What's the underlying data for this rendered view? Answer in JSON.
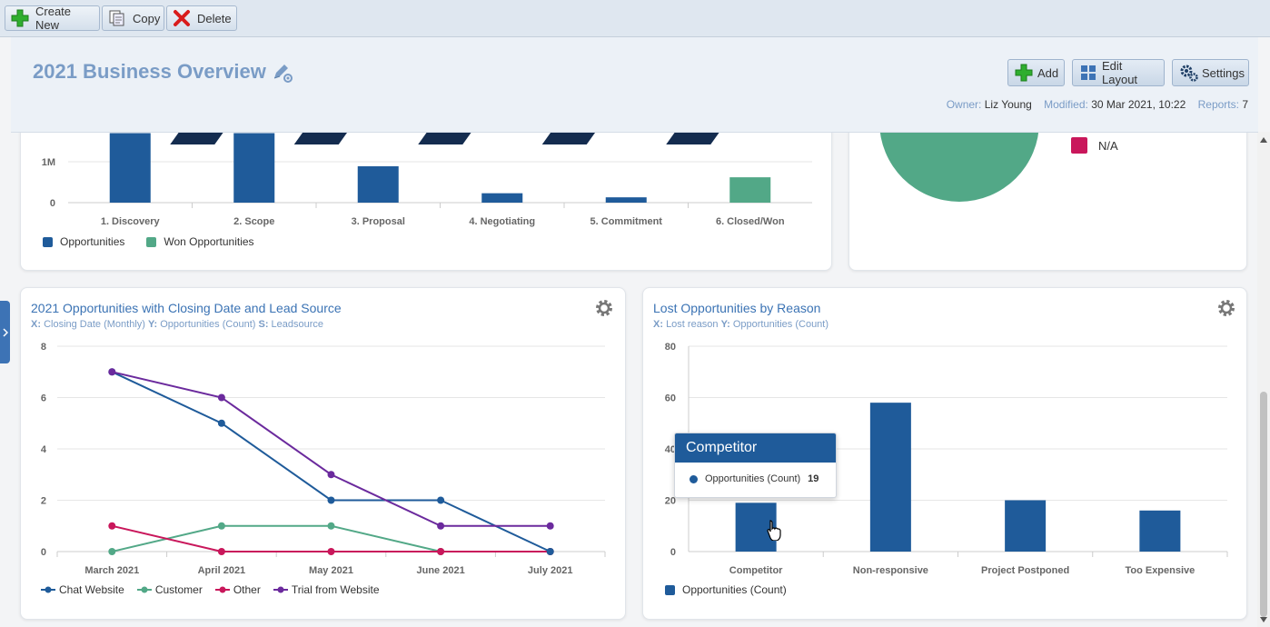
{
  "toolbar": {
    "create_new": "Create New",
    "copy": "Copy",
    "delete": "Delete"
  },
  "header": {
    "title": "2021 Business Overview",
    "add": "Add",
    "edit_layout": "Edit Layout",
    "settings": "Settings",
    "owner_label": "Owner:",
    "owner": "Liz Young",
    "modified_label": "Modified:",
    "modified": "30 Mar 2021, 10:22",
    "reports_label": "Reports:",
    "reports": "7"
  },
  "pipeline_card": {
    "y_ticks": [
      "1M",
      "0"
    ],
    "legend": [
      "Opportunities",
      "Won Opportunities"
    ]
  },
  "pie_card": {
    "legend": [
      "N/A"
    ]
  },
  "line_card": {
    "title": "2021 Opportunities with Closing Date and Lead Source",
    "sub_x_key": "X:",
    "sub_x": "Closing Date (Monthly)",
    "sub_y_key": "Y:",
    "sub_y": "Opportunities (Count)",
    "sub_s_key": "S:",
    "sub_s": "Leadsource"
  },
  "bar_card": {
    "title": "Lost Opportunities by Reason",
    "sub_x_key": "X:",
    "sub_x": "Lost reason",
    "sub_y_key": "Y:",
    "sub_y": "Opportunities (Count)"
  },
  "tooltip": {
    "title": "Competitor",
    "series": "Opportunities (Count)",
    "value": "19"
  },
  "colors": {
    "blue": "#1f5b9a",
    "green": "#52a887",
    "crimson": "#c9175b",
    "purple": "#6b2a9d",
    "navy": "#142c4f"
  },
  "chart_data": [
    {
      "type": "bar",
      "categories": [
        "1. Discovery",
        "2. Scope",
        "3. Proposal",
        "4. Negotiating",
        "5. Commitment",
        "6. Closed/Won"
      ],
      "series": [
        {
          "name": "Opportunities",
          "values": [
            1700000,
            1700000,
            890000,
            230000,
            130000,
            0
          ]
        },
        {
          "name": "Won Opportunities",
          "values": [
            0,
            0,
            0,
            0,
            0,
            620000
          ]
        }
      ],
      "yticks": [
        "0",
        "1M"
      ],
      "ylim": [
        0,
        1700000
      ],
      "legend": "bottom-left",
      "grid": true
    },
    {
      "type": "pie",
      "labels": [
        "N/A"
      ],
      "values": [
        1
      ],
      "legend": "right"
    },
    {
      "type": "line",
      "title": "2021 Opportunities with Closing Date and Lead Source",
      "categories": [
        "March 2021",
        "April 2021",
        "May 2021",
        "June 2021",
        "July 2021"
      ],
      "series": [
        {
          "name": "Chat Website",
          "values": [
            7,
            5,
            2,
            2,
            0
          ]
        },
        {
          "name": "Customer",
          "values": [
            0,
            1,
            1,
            0,
            0
          ]
        },
        {
          "name": "Other",
          "values": [
            1,
            0,
            0,
            0,
            0
          ]
        },
        {
          "name": "Trial from Website",
          "values": [
            7,
            6,
            3,
            1,
            1
          ]
        }
      ],
      "ylim": [
        0,
        8
      ],
      "yticks": [
        0,
        2,
        4,
        6,
        8
      ],
      "legend": "bottom-left",
      "grid": true
    },
    {
      "type": "bar",
      "title": "Lost Opportunities by Reason",
      "categories": [
        "Competitor",
        "Non-responsive",
        "Project Postponed",
        "Too Expensive"
      ],
      "series": [
        {
          "name": "Opportunities (Count)",
          "values": [
            19,
            58,
            20,
            16
          ]
        }
      ],
      "ylim": [
        0,
        80
      ],
      "yticks": [
        0,
        20,
        40,
        60,
        80
      ],
      "legend": "bottom-left",
      "grid": true
    }
  ]
}
